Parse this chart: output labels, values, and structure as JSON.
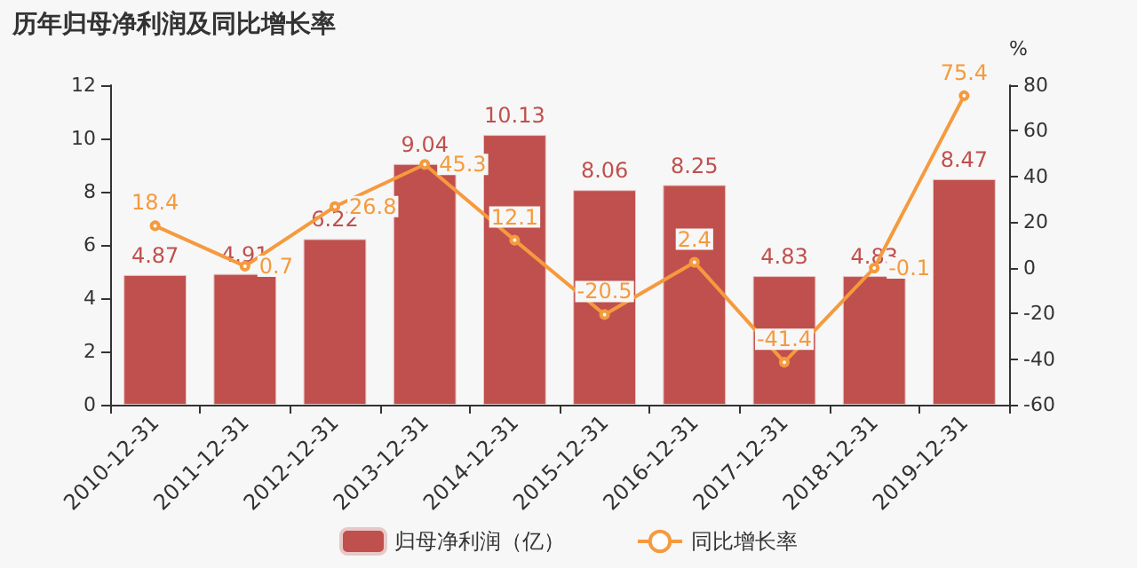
{
  "chart_data": {
    "type": "bar",
    "title": "历年归母净利润及同比增长率",
    "categories": [
      "2010-12-31",
      "2011-12-31",
      "2012-12-31",
      "2013-12-31",
      "2014-12-31",
      "2015-12-31",
      "2016-12-31",
      "2017-12-31",
      "2018-12-31",
      "2019-12-31"
    ],
    "series": [
      {
        "name": "归母净利润（亿）",
        "color": "#c0504d",
        "values": [
          4.87,
          4.91,
          6.22,
          9.04,
          10.13,
          8.06,
          8.25,
          4.83,
          4.83,
          8.47
        ]
      },
      {
        "name": "同比增长率",
        "type": "line",
        "axis": "y2",
        "color": "#f59a3e",
        "marker": "circle",
        "values": [
          18.4,
          0.7,
          26.8,
          45.3,
          12.1,
          -20.5,
          2.4,
          -41.4,
          -0.1,
          75.4
        ]
      }
    ],
    "y2label": "%",
    "ylim": [
      0,
      12
    ],
    "yticks": [
      0,
      2,
      4,
      6,
      8,
      10,
      12
    ],
    "y2lim": [
      -60,
      80
    ],
    "y2ticks": [
      -60,
      -40,
      -20,
      0,
      20,
      40,
      60,
      80
    ],
    "data_labels": true,
    "grid": false,
    "legend": "bottom"
  }
}
